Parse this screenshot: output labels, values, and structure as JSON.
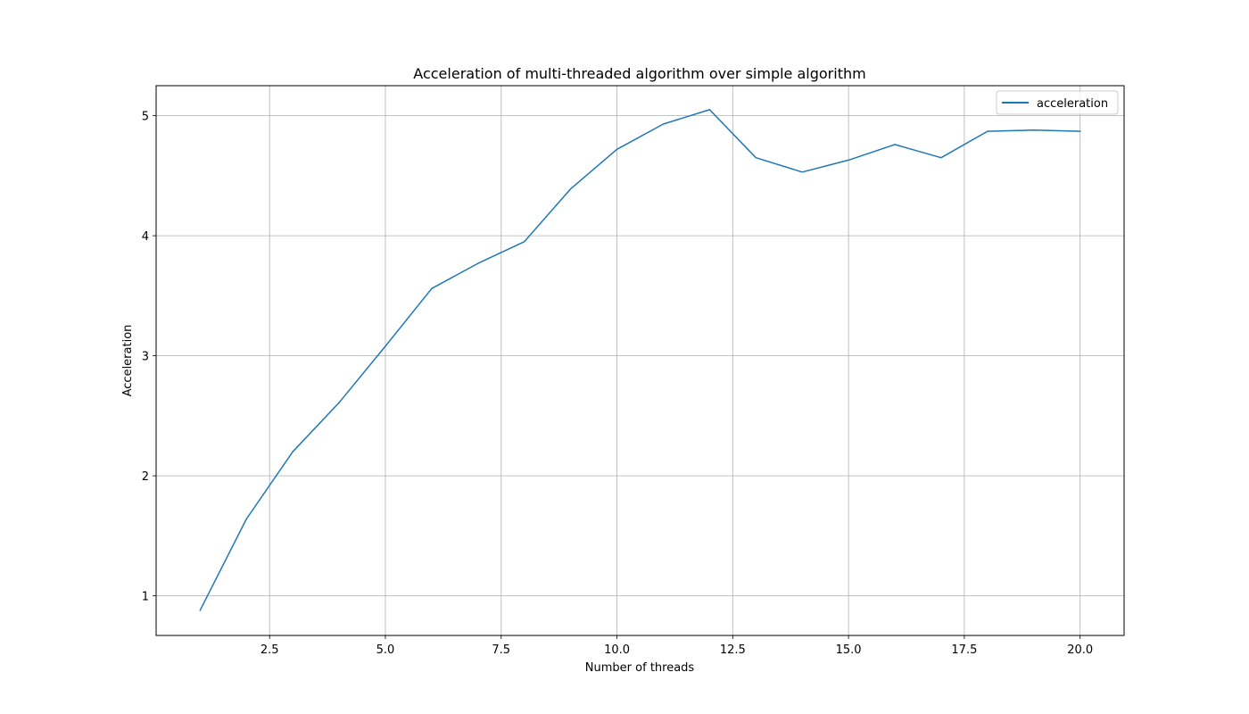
{
  "chart_data": {
    "type": "line",
    "title": "Acceleration of multi-threaded algorithm over simple algorithm",
    "xlabel": "Number of threads",
    "ylabel": "Acceleration",
    "xlim": [
      0.05,
      20.95
    ],
    "ylim": [
      0.67,
      5.25
    ],
    "xticks": [
      2.5,
      5.0,
      7.5,
      10.0,
      12.5,
      15.0,
      17.5,
      20.0
    ],
    "xtick_labels": [
      "2.5",
      "5.0",
      "7.5",
      "10.0",
      "12.5",
      "15.0",
      "17.5",
      "20.0"
    ],
    "yticks": [
      1,
      2,
      3,
      4,
      5
    ],
    "ytick_labels": [
      "1",
      "2",
      "3",
      "4",
      "5"
    ],
    "grid": true,
    "legend_position": "top-right",
    "series": [
      {
        "name": "acceleration",
        "color": "#1f77b4",
        "x": [
          1,
          2,
          3,
          4,
          5,
          6,
          7,
          8,
          9,
          10,
          11,
          12,
          13,
          14,
          15,
          16,
          17,
          18,
          19,
          20
        ],
        "y": [
          0.88,
          1.64,
          2.2,
          2.61,
          3.08,
          3.56,
          3.77,
          3.95,
          4.39,
          4.72,
          4.93,
          5.05,
          4.65,
          4.53,
          4.63,
          4.76,
          4.65,
          4.87,
          4.88,
          4.87
        ]
      }
    ]
  }
}
